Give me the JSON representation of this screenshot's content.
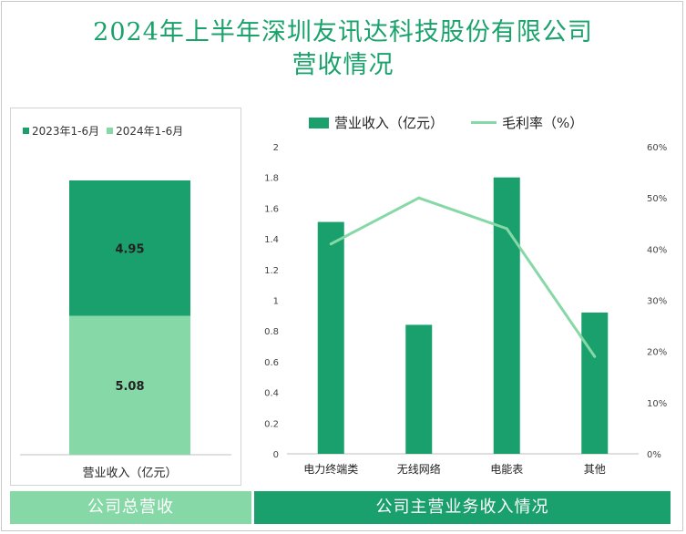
{
  "title_line1": "2024年上半年深圳友讯达科技股份有限公司",
  "title_line2": "营收情况",
  "colors": {
    "title": "#1aa26b",
    "dark_green": "#19a06c",
    "light_green": "#86d9a6",
    "line": "#86d9a6"
  },
  "chart_data": [
    {
      "type": "bar",
      "stacked": true,
      "categories": [
        "营业收入（亿元）"
      ],
      "series": [
        {
          "name": "2023年1-6月",
          "values": [
            4.95
          ],
          "color": "#19a06c"
        },
        {
          "name": "2024年1-6月",
          "values": [
            5.08
          ],
          "color": "#86d9a6"
        }
      ],
      "data_labels": [
        "4.95",
        "5.08"
      ],
      "legend": "top",
      "grid": false
    },
    {
      "type": "bar",
      "categories": [
        "电力终端类",
        "无线网络",
        "电能表",
        "其他"
      ],
      "series": [
        {
          "name": "营业收入（亿元）",
          "type": "bar",
          "axis": "left",
          "values": [
            1.51,
            0.84,
            1.8,
            0.92
          ],
          "color": "#19a06c"
        },
        {
          "name": "毛利率（%）",
          "type": "line",
          "axis": "right",
          "values": [
            41,
            50,
            44,
            19
          ],
          "color": "#86d9a6"
        }
      ],
      "y_left": {
        "ylim": [
          0,
          2
        ],
        "ticks": [
          "0",
          "0.2",
          "0.4",
          "0.6",
          "0.8",
          "1",
          "1.2",
          "1.4",
          "1.6",
          "1.8",
          "2"
        ]
      },
      "y_right": {
        "ylim": [
          0,
          60
        ],
        "ticks": [
          "0%",
          "10%",
          "20%",
          "30%",
          "40%",
          "50%",
          "60%"
        ]
      },
      "legend": "top",
      "grid": false
    }
  ],
  "footer": {
    "left": "公司总营收",
    "right": "公司主营业务收入情况"
  }
}
